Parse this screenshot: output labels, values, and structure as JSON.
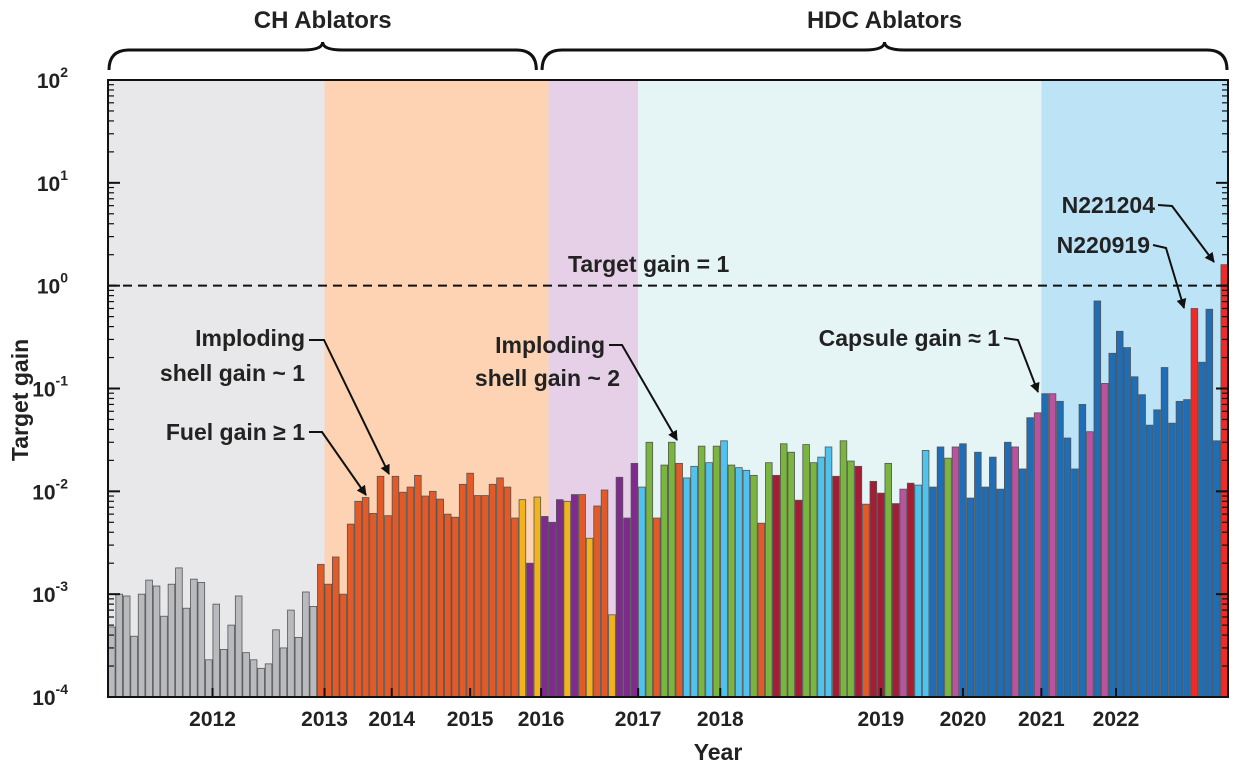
{
  "chart_data": {
    "type": "bar",
    "title": "",
    "xlabel": "Year",
    "ylabel": "Target gain",
    "yscale": "log",
    "ylim": [
      0.0001,
      100
    ],
    "y_ticks": [
      {
        "base": "10",
        "exp": "2",
        "value": 100
      },
      {
        "base": "10",
        "exp": "1",
        "value": 10
      },
      {
        "base": "10",
        "exp": "0",
        "value": 1
      },
      {
        "base": "10",
        "exp": "-1",
        "value": 0.1
      },
      {
        "base": "10",
        "exp": "-2",
        "value": 0.01
      },
      {
        "base": "10",
        "exp": "-3",
        "value": 0.001
      },
      {
        "base": "10",
        "exp": "-4",
        "value": 0.0001
      }
    ],
    "x_ticks": [
      {
        "label": "2012",
        "bar_index": 14
      },
      {
        "label": "2013",
        "bar_index": 29
      },
      {
        "label": "2014",
        "bar_index": 38
      },
      {
        "label": "2015",
        "bar_index": 48.5
      },
      {
        "label": "2016",
        "bar_index": 58
      },
      {
        "label": "2017",
        "bar_index": 71
      },
      {
        "label": "2018",
        "bar_index": 82
      },
      {
        "label": "2019",
        "bar_index": 103.5
      },
      {
        "label": "2020",
        "bar_index": 114.5
      },
      {
        "label": "2021",
        "bar_index": 125
      },
      {
        "label": "2022",
        "bar_index": 135
      }
    ],
    "regions": [
      {
        "from": 0,
        "to": 29,
        "color": "#e8e8ea"
      },
      {
        "from": 29,
        "to": 59,
        "color": "#fdd3b4"
      },
      {
        "from": 59,
        "to": 71,
        "color": "#e6d0e7"
      },
      {
        "from": 71,
        "to": 125,
        "color": "#e5f4f5"
      },
      {
        "from": 125,
        "to": 150,
        "color": "#bde3f7"
      }
    ],
    "groups": [
      {
        "label": "CH Ablators",
        "from": 0,
        "to": 57.5
      },
      {
        "label": "HDC Ablators",
        "from": 58,
        "to": 150
      }
    ],
    "palette": {
      "g": "#b9babd",
      "o": "#e15a27",
      "y": "#f2b31d",
      "p": "#7f2b8e",
      "c": "#4fc3ee",
      "n": "#7ab53f",
      "k": "#a51d35",
      "m": "#b9529f",
      "b": "#1f6db4",
      "r": "#ee2a2a"
    },
    "bars": [
      [
        0.00048,
        "g"
      ],
      [
        0.001,
        "g"
      ],
      [
        0.00096,
        "g"
      ],
      [
        0.00039,
        "g"
      ],
      [
        0.001,
        "g"
      ],
      [
        0.00137,
        "g"
      ],
      [
        0.0012,
        "g"
      ],
      [
        0.00061,
        "g"
      ],
      [
        0.00125,
        "g"
      ],
      [
        0.0018,
        "g"
      ],
      [
        0.00073,
        "g"
      ],
      [
        0.0014,
        "g"
      ],
      [
        0.0013,
        "g"
      ],
      [
        0.00023,
        "g"
      ],
      [
        0.0008,
        "g"
      ],
      [
        0.00029,
        "g"
      ],
      [
        0.0005,
        "g"
      ],
      [
        0.00096,
        "g"
      ],
      [
        0.00027,
        "g"
      ],
      [
        0.00023,
        "g"
      ],
      [
        0.00019,
        "g"
      ],
      [
        0.00021,
        "g"
      ],
      [
        0.00045,
        "g"
      ],
      [
        0.0003,
        "g"
      ],
      [
        0.0007,
        "g"
      ],
      [
        0.00038,
        "g"
      ],
      [
        0.00105,
        "g"
      ],
      [
        0.00076,
        "g"
      ],
      [
        0.00195,
        "o"
      ],
      [
        0.00125,
        "o"
      ],
      [
        0.0023,
        "o"
      ],
      [
        0.001,
        "o"
      ],
      [
        0.0048,
        "o"
      ],
      [
        0.008,
        "o"
      ],
      [
        0.0087,
        "o"
      ],
      [
        0.0061,
        "o"
      ],
      [
        0.014,
        "o"
      ],
      [
        0.0058,
        "o"
      ],
      [
        0.014,
        "o"
      ],
      [
        0.0098,
        "o"
      ],
      [
        0.011,
        "o"
      ],
      [
        0.0143,
        "o"
      ],
      [
        0.009,
        "o"
      ],
      [
        0.01,
        "o"
      ],
      [
        0.0084,
        "o"
      ],
      [
        0.006,
        "o"
      ],
      [
        0.0056,
        "o"
      ],
      [
        0.0117,
        "o"
      ],
      [
        0.015,
        "o"
      ],
      [
        0.0091,
        "o"
      ],
      [
        0.0091,
        "o"
      ],
      [
        0.0117,
        "o"
      ],
      [
        0.0135,
        "o"
      ],
      [
        0.011,
        "o"
      ],
      [
        0.0055,
        "o"
      ],
      [
        0.0083,
        "y"
      ],
      [
        0.002,
        "p"
      ],
      [
        0.0088,
        "y"
      ],
      [
        0.0057,
        "p"
      ],
      [
        0.005,
        "p"
      ],
      [
        0.0083,
        "p"
      ],
      [
        0.008,
        "y"
      ],
      [
        0.0093,
        "p"
      ],
      [
        0.0093,
        "o"
      ],
      [
        0.0035,
        "y"
      ],
      [
        0.0072,
        "o"
      ],
      [
        0.0103,
        "o"
      ],
      [
        0.00063,
        "y"
      ],
      [
        0.0137,
        "p"
      ],
      [
        0.0055,
        "p"
      ],
      [
        0.0187,
        "p"
      ],
      [
        0.011,
        "c"
      ],
      [
        0.03,
        "n"
      ],
      [
        0.0055,
        "o"
      ],
      [
        0.018,
        "n"
      ],
      [
        0.03,
        "n"
      ],
      [
        0.0187,
        "o"
      ],
      [
        0.0135,
        "c"
      ],
      [
        0.0175,
        "c"
      ],
      [
        0.0275,
        "n"
      ],
      [
        0.019,
        "c"
      ],
      [
        0.0275,
        "n"
      ],
      [
        0.031,
        "c"
      ],
      [
        0.018,
        "n"
      ],
      [
        0.017,
        "c"
      ],
      [
        0.016,
        "c"
      ],
      [
        0.0143,
        "n"
      ],
      [
        0.0049,
        "o"
      ],
      [
        0.019,
        "n"
      ],
      [
        0.0143,
        "k"
      ],
      [
        0.029,
        "n"
      ],
      [
        0.024,
        "n"
      ],
      [
        0.0082,
        "k"
      ],
      [
        0.0285,
        "n"
      ],
      [
        0.019,
        "n"
      ],
      [
        0.0215,
        "c"
      ],
      [
        0.027,
        "c"
      ],
      [
        0.014,
        "k"
      ],
      [
        0.031,
        "n"
      ],
      [
        0.0197,
        "n"
      ],
      [
        0.0175,
        "k"
      ],
      [
        0.0075,
        "o"
      ],
      [
        0.0125,
        "k"
      ],
      [
        0.0096,
        "k"
      ],
      [
        0.0187,
        "n"
      ],
      [
        0.0076,
        "k"
      ],
      [
        0.0105,
        "m"
      ],
      [
        0.012,
        "k"
      ],
      [
        0.0115,
        "c"
      ],
      [
        0.025,
        "c"
      ],
      [
        0.011,
        "b"
      ],
      [
        0.027,
        "b"
      ],
      [
        0.021,
        "n"
      ],
      [
        0.027,
        "m"
      ],
      [
        0.029,
        "b"
      ],
      [
        0.0086,
        "b"
      ],
      [
        0.024,
        "b"
      ],
      [
        0.011,
        "b"
      ],
      [
        0.0215,
        "b"
      ],
      [
        0.0105,
        "b"
      ],
      [
        0.03,
        "b"
      ],
      [
        0.027,
        "m"
      ],
      [
        0.0165,
        "b"
      ],
      [
        0.052,
        "b"
      ],
      [
        0.058,
        "m"
      ],
      [
        0.089,
        "b"
      ],
      [
        0.089,
        "m"
      ],
      [
        0.075,
        "b"
      ],
      [
        0.033,
        "b"
      ],
      [
        0.0165,
        "b"
      ],
      [
        0.07,
        "b"
      ],
      [
        0.038,
        "m"
      ],
      [
        0.71,
        "b"
      ],
      [
        0.112,
        "m"
      ],
      [
        0.22,
        "b"
      ],
      [
        0.36,
        "b"
      ],
      [
        0.25,
        "b"
      ],
      [
        0.13,
        "b"
      ],
      [
        0.087,
        "b"
      ],
      [
        0.044,
        "b"
      ],
      [
        0.062,
        "b"
      ],
      [
        0.16,
        "b"
      ],
      [
        0.046,
        "b"
      ],
      [
        0.075,
        "b"
      ],
      [
        0.078,
        "b"
      ],
      [
        0.6,
        "r"
      ],
      [
        0.18,
        "b"
      ],
      [
        0.59,
        "b"
      ],
      [
        0.031,
        "b"
      ],
      [
        1.6,
        "r"
      ]
    ],
    "reference_line": {
      "value": 1,
      "label": "Target gain = 1",
      "style": "dashed"
    },
    "annotations": {
      "implode1_line1": "Imploding",
      "implode1_line2": "shell gain ~ 1",
      "fuel_gain": "Fuel gain ≥ 1",
      "implode2_line1": "Imploding",
      "implode2_line2": "shell gain ~ 2",
      "capsule_gain": "Capsule gain ≈ 1",
      "n220919": "N220919",
      "n221204": "N221204"
    }
  }
}
